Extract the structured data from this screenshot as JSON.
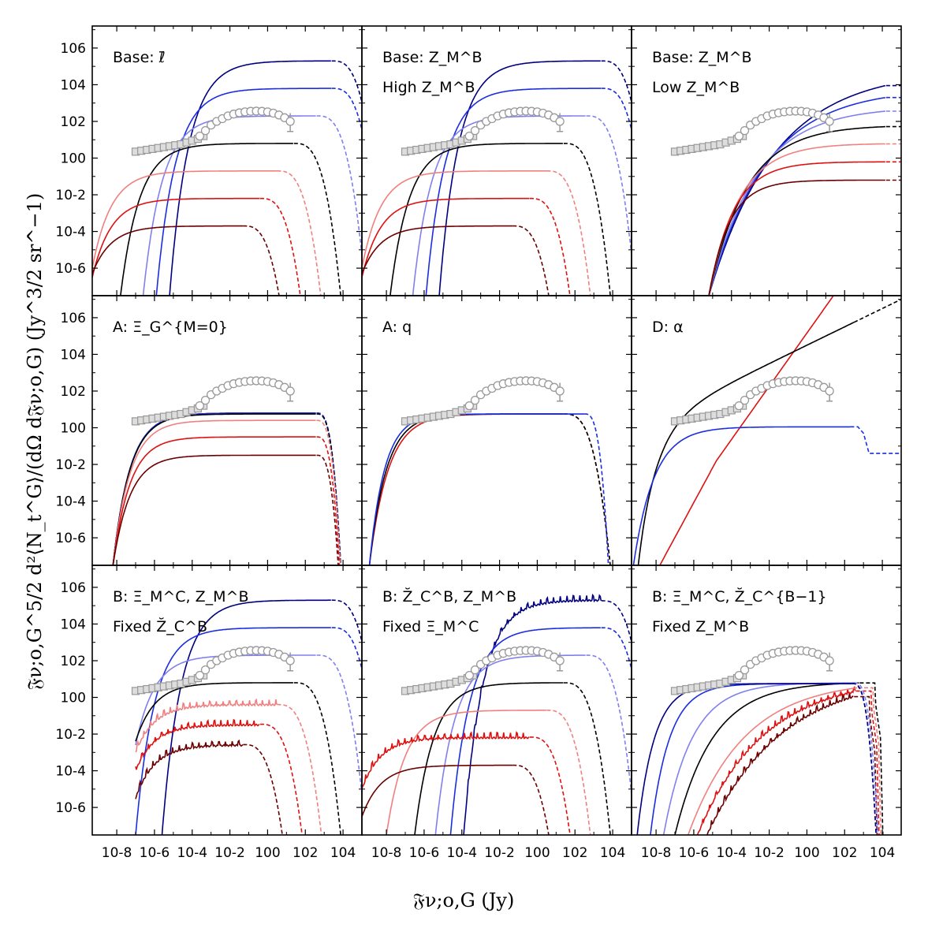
{
  "chart_data": {
    "type": "line",
    "grid": false,
    "xlabel": "𝔉ν;o,G (Jy)",
    "ylabel": "𝔉ν;o,G^5/2 d²⟨N_t^G⟩/(dΩ d𝔉ν;o,G) (Jy^3/2 sr^−1)",
    "xlim_log10": [
      -9.3,
      5
    ],
    "ylim_log10": [
      -7.5,
      7.2
    ],
    "x_ticks": [
      {
        "exp": -8,
        "label": "10-8"
      },
      {
        "exp": -6,
        "label": "10-6"
      },
      {
        "exp": -4,
        "label": "10-4"
      },
      {
        "exp": -2,
        "label": "10-2"
      },
      {
        "exp": 0,
        "label": "100"
      },
      {
        "exp": 2,
        "label": "102"
      },
      {
        "exp": 4,
        "label": "104"
      }
    ],
    "y_ticks": [
      {
        "exp": 6,
        "label": "106"
      },
      {
        "exp": 4,
        "label": "104"
      },
      {
        "exp": 2,
        "label": "102"
      },
      {
        "exp": 0,
        "label": "100"
      },
      {
        "exp": -2,
        "label": "10-2"
      },
      {
        "exp": -4,
        "label": "10-4"
      },
      {
        "exp": -6,
        "label": "10-6"
      }
    ],
    "colors": {
      "navy": "#000080",
      "blue": "#1a2ee0",
      "lightblue": "#8080ee",
      "black": "#000000",
      "pink": "#f08080",
      "red": "#dd1111",
      "darkred": "#6b0000",
      "data_gray": "#999999",
      "data_fill": "#dddddd"
    },
    "observed": {
      "squares": {
        "x": [
          -7.0,
          -6.7,
          -6.4,
          -6.1,
          -5.8,
          -5.5,
          -5.2,
          -4.9,
          -4.6,
          -4.3,
          -4.0,
          -3.7,
          -3.4
        ],
        "y": [
          0.35,
          0.4,
          0.45,
          0.5,
          0.55,
          0.6,
          0.65,
          0.7,
          0.75,
          0.85,
          0.95,
          1.05,
          1.2
        ]
      },
      "circles": {
        "x": [
          -3.6,
          -3.3,
          -3.0,
          -2.7,
          -2.4,
          -2.1,
          -1.8,
          -1.5,
          -1.2,
          -0.9,
          -0.6,
          -0.3,
          0.0,
          0.3,
          0.6,
          0.9,
          1.2
        ],
        "y": [
          1.2,
          1.5,
          1.8,
          2.0,
          2.15,
          2.3,
          2.4,
          2.47,
          2.52,
          2.55,
          2.56,
          2.55,
          2.52,
          2.45,
          2.35,
          2.2,
          2.0
        ],
        "errorbar_last": true
      }
    },
    "panels": [
      {
        "id": "p1",
        "row": 0,
        "col": 0,
        "labels": [
          "Base: ℓ̄"
        ],
        "curves": [
          {
            "color": "navy",
            "xs": -5.2,
            "ystart": -7.5,
            "rise": 1.0,
            "plateau": 5.3,
            "xend": 4.2,
            "cut": "dashed"
          },
          {
            "color": "blue",
            "xs": -5.9,
            "ystart": -7.5,
            "rise": 1.0,
            "plateau": 3.8,
            "xend": 4.2,
            "cut": "dashed"
          },
          {
            "color": "lightblue",
            "xs": -6.6,
            "ystart": -7.5,
            "rise": 1.0,
            "plateau": 2.3,
            "xend": 3.4,
            "cut": "dashed"
          },
          {
            "color": "black",
            "xs": -7.8,
            "ystart": -7.5,
            "rise": 1.0,
            "plateau": 0.8,
            "xend": 2.2,
            "cut": "dashed"
          },
          {
            "color": "pink",
            "xs": -9.3,
            "ystart": -6.0,
            "rise": 1.0,
            "plateau": -0.7,
            "xend": 1.3,
            "cut": "dashed"
          },
          {
            "color": "red",
            "xs": -9.3,
            "ystart": -6.5,
            "rise": 1.0,
            "plateau": -2.2,
            "xend": 0.4,
            "cut": "dashed"
          },
          {
            "color": "darkred",
            "xs": -9.3,
            "ystart": -6.3,
            "rise": 1.0,
            "plateau": -3.7,
            "xend": -0.5,
            "cut": "dashed"
          }
        ]
      },
      {
        "id": "p2",
        "row": 0,
        "col": 1,
        "labels": [
          "Base: Z_M^B",
          "High Z_M^B"
        ],
        "curves": [
          {
            "color": "navy",
            "xs": -5.2,
            "ystart": -7.5,
            "rise": 1.0,
            "plateau": 5.3,
            "xend": 4.2,
            "cut": "dashed"
          },
          {
            "color": "blue",
            "xs": -5.9,
            "ystart": -7.5,
            "rise": 1.0,
            "plateau": 3.8,
            "xend": 4.2,
            "cut": "dashed"
          },
          {
            "color": "lightblue",
            "xs": -6.6,
            "ystart": -7.5,
            "rise": 1.0,
            "plateau": 2.3,
            "xend": 3.4,
            "cut": "dashed"
          },
          {
            "color": "black",
            "xs": -7.8,
            "ystart": -7.5,
            "rise": 1.0,
            "plateau": 0.8,
            "xend": 2.2,
            "cut": "dashed"
          },
          {
            "color": "pink",
            "xs": -9.3,
            "ystart": -6.0,
            "rise": 1.0,
            "plateau": -0.7,
            "xend": 1.3,
            "cut": "dashed"
          },
          {
            "color": "red",
            "xs": -9.3,
            "ystart": -6.5,
            "rise": 1.0,
            "plateau": -2.2,
            "xend": 0.4,
            "cut": "dashed"
          },
          {
            "color": "darkred",
            "xs": -9.3,
            "ystart": -6.3,
            "rise": 1.0,
            "plateau": -3.7,
            "xend": -0.5,
            "cut": "dashed"
          }
        ]
      },
      {
        "id": "p3",
        "row": 0,
        "col": 2,
        "labels": [
          "Base: Z_M^B",
          "Low Z_M^B"
        ],
        "curves": [
          {
            "color": "navy",
            "xs": -5.2,
            "ystart": -7.5,
            "rise": 3.5,
            "plateau": 4.8,
            "xend": 5.0,
            "cut": "dashed-flat"
          },
          {
            "color": "blue",
            "xs": -5.2,
            "ystart": -7.5,
            "rise": 3.0,
            "plateau": 3.8,
            "xend": 5.0,
            "cut": "dashed-flat"
          },
          {
            "color": "lightblue",
            "xs": -5.2,
            "ystart": -7.5,
            "rise": 2.5,
            "plateau": 2.8,
            "xend": 5.0,
            "cut": "dashed-flat"
          },
          {
            "color": "black",
            "xs": -5.2,
            "ystart": -7.5,
            "rise": 2.0,
            "plateau": 1.8,
            "xend": 5.0,
            "cut": "dashed-flat"
          },
          {
            "color": "pink",
            "xs": -5.2,
            "ystart": -7.5,
            "rise": 1.6,
            "plateau": 0.8,
            "xend": 5.0,
            "cut": "dashed-flat"
          },
          {
            "color": "red",
            "xs": -5.2,
            "ystart": -7.5,
            "rise": 1.3,
            "plateau": -0.2,
            "xend": 5.0,
            "cut": "dashed-flat"
          },
          {
            "color": "darkred",
            "xs": -5.2,
            "ystart": -7.5,
            "rise": 1.1,
            "plateau": -1.2,
            "xend": 5.0,
            "cut": "dashed-flat"
          }
        ]
      },
      {
        "id": "p4",
        "row": 1,
        "col": 0,
        "labels": [
          "A: Ξ_G^{M=0}"
        ],
        "curves": [
          {
            "color": "lightblue",
            "xs": -8.2,
            "ystart": -7.5,
            "rise": 0.9,
            "plateau": 0.8,
            "xend": 3.4,
            "cut": "dashed-steep"
          },
          {
            "color": "navy",
            "xs": -8.2,
            "ystart": -7.5,
            "rise": 0.9,
            "plateau": 0.8,
            "xend": 3.4,
            "cut": "dashed-steep"
          },
          {
            "color": "blue",
            "xs": -8.2,
            "ystart": -7.5,
            "rise": 0.9,
            "plateau": 0.8,
            "xend": 3.4,
            "cut": "dashed-steep"
          },
          {
            "color": "black",
            "xs": -8.2,
            "ystart": -7.5,
            "rise": 0.9,
            "plateau": 0.75,
            "xend": 3.4,
            "cut": "dashed-steep"
          },
          {
            "color": "pink",
            "xs": -8.2,
            "ystart": -7.5,
            "rise": 0.9,
            "plateau": 0.4,
            "xend": 3.4,
            "cut": "dashed-steep"
          },
          {
            "color": "red",
            "xs": -8.2,
            "ystart": -7.5,
            "rise": 0.9,
            "plateau": -0.5,
            "xend": 3.4,
            "cut": "dashed-steep"
          },
          {
            "color": "darkred",
            "xs": -8.2,
            "ystart": -7.5,
            "rise": 0.9,
            "plateau": -1.5,
            "xend": 3.4,
            "cut": "dashed-steep"
          }
        ]
      },
      {
        "id": "p5",
        "row": 1,
        "col": 1,
        "labels": [
          "A: q"
        ],
        "curves": [
          {
            "color": "red",
            "xs": -8.9,
            "ystart": -7.5,
            "rise": 1.0,
            "plateau": 0.75,
            "xend": 2.2,
            "cut": "dashed"
          },
          {
            "color": "black",
            "xs": -8.9,
            "ystart": -7.5,
            "rise": 0.9,
            "plateau": 0.75,
            "xend": 2.2,
            "cut": "dashed"
          },
          {
            "color": "blue",
            "xs": -8.9,
            "ystart": -7.5,
            "rise": 0.8,
            "plateau": 0.75,
            "xend": 3.3,
            "cut": "dashed-steep"
          }
        ]
      },
      {
        "id": "p6",
        "row": 1,
        "col": 2,
        "labels": [
          "D: α"
        ],
        "curves": [
          {
            "color": "red",
            "kind": "power",
            "xs": -7.8,
            "ystart": -7.5,
            "slope": 1.4,
            "xmax": 0.0
          },
          {
            "color": "black",
            "kind": "power2",
            "xs": -9.0,
            "ystart": -7.5,
            "xend": 5.0
          },
          {
            "color": "blue",
            "kind": "step",
            "xs": -9.2,
            "ystart": -7.5,
            "plateau": 0.05,
            "xend": 5.0
          }
        ]
      },
      {
        "id": "p7",
        "row": 2,
        "col": 0,
        "labels": [
          "B: Ξ_M^C, Z_M^B",
          "Fixed Z̆_C^B"
        ],
        "curves": [
          {
            "color": "navy",
            "xs": -5.6,
            "ystart": -7.5,
            "rise": 1.0,
            "plateau": 5.3,
            "xend": 4.2,
            "cut": "dashed"
          },
          {
            "color": "blue",
            "xs": -7.0,
            "ystart": -7.5,
            "rise": 1.0,
            "plateau": 3.8,
            "xend": 4.2,
            "cut": "dashed"
          },
          {
            "color": "lightblue",
            "xs": -7.0,
            "ystart": -2.6,
            "rise": 1.0,
            "plateau": 2.3,
            "xend": 3.4,
            "cut": "dashed"
          },
          {
            "color": "black",
            "xs": -7.0,
            "ystart": -2.4,
            "rise": 1.0,
            "plateau": 0.8,
            "xend": 2.2,
            "cut": "dashed"
          },
          {
            "color": "pink",
            "xs": -7.0,
            "ystart": -3.0,
            "rise": 1.0,
            "plateau": -0.4,
            "xend": 1.3,
            "cut": "dashed",
            "noisy": true
          },
          {
            "color": "red",
            "xs": -7.0,
            "ystart": -4.0,
            "rise": 1.0,
            "plateau": -1.5,
            "xend": 0.4,
            "cut": "dashed",
            "noisy": true
          },
          {
            "color": "darkred",
            "xs": -7.0,
            "ystart": -5.5,
            "rise": 1.0,
            "plateau": -2.6,
            "xend": -0.5,
            "cut": "dashed",
            "noisy": true
          }
        ]
      },
      {
        "id": "p8",
        "row": 2,
        "col": 1,
        "labels": [
          "B: Z̆_C^B, Z_M^B",
          "Fixed Ξ_M^C"
        ],
        "curves": [
          {
            "color": "navy",
            "xs": -3.9,
            "ystart": -7.5,
            "rise": 1.0,
            "plateau": 5.3,
            "xend": 4.2,
            "cut": "dashed",
            "noisy": true
          },
          {
            "color": "blue",
            "xs": -4.6,
            "ystart": -7.5,
            "rise": 1.0,
            "plateau": 3.8,
            "xend": 4.2,
            "cut": "dashed"
          },
          {
            "color": "lightblue",
            "xs": -5.4,
            "ystart": -7.5,
            "rise": 1.0,
            "plateau": 2.3,
            "xend": 3.4,
            "cut": "dashed"
          },
          {
            "color": "black",
            "xs": -6.5,
            "ystart": -7.5,
            "rise": 1.0,
            "plateau": 0.8,
            "xend": 2.2,
            "cut": "dashed"
          },
          {
            "color": "pink",
            "xs": -8.0,
            "ystart": -7.5,
            "rise": 1.0,
            "plateau": -0.7,
            "xend": 1.3,
            "cut": "dashed"
          },
          {
            "color": "red",
            "xs": -9.3,
            "ystart": -5.0,
            "rise": 1.0,
            "plateau": -2.2,
            "xend": 0.4,
            "cut": "dashed",
            "noisy": true
          },
          {
            "color": "darkred",
            "xs": -9.3,
            "ystart": -6.5,
            "rise": 1.0,
            "plateau": -3.7,
            "xend": -0.5,
            "cut": "dashed"
          }
        ]
      },
      {
        "id": "p9",
        "row": 2,
        "col": 2,
        "labels": [
          "B: Ξ_M^C, Z̆_C^{B−1}",
          "Fixed Z_M^B"
        ],
        "curves": [
          {
            "color": "darkred",
            "xs": -5.3,
            "ystart": -7.5,
            "rise": 4.0,
            "plateau": 1.3,
            "xend": 3.3,
            "cut": "dashed-step",
            "noisy": true
          },
          {
            "color": "red",
            "xs": -5.8,
            "ystart": -7.5,
            "rise": 3.5,
            "plateau": 1.1,
            "xend": 3.4,
            "cut": "dashed-step",
            "noisy": true
          },
          {
            "color": "pink",
            "xs": -6.3,
            "ystart": -7.5,
            "rise": 3.0,
            "plateau": 0.95,
            "xend": 3.5,
            "cut": "dashed-step"
          },
          {
            "color": "black",
            "xs": -7.0,
            "ystart": -7.5,
            "rise": 2.0,
            "plateau": 0.85,
            "xend": 3.6,
            "cut": "dashed-step"
          },
          {
            "color": "lightblue",
            "xs": -7.6,
            "ystart": -7.5,
            "rise": 1.5,
            "plateau": 0.8,
            "xend": 3.3,
            "cut": "dashed-steep"
          },
          {
            "color": "blue",
            "xs": -8.3,
            "ystart": -7.5,
            "rise": 1.0,
            "plateau": 0.75,
            "xend": 3.2,
            "cut": "dashed-steep"
          },
          {
            "color": "navy",
            "xs": -9.0,
            "ystart": -7.5,
            "rise": 0.9,
            "plateau": 0.75,
            "xend": 3.2,
            "cut": "dashed-steep"
          }
        ]
      }
    ]
  }
}
